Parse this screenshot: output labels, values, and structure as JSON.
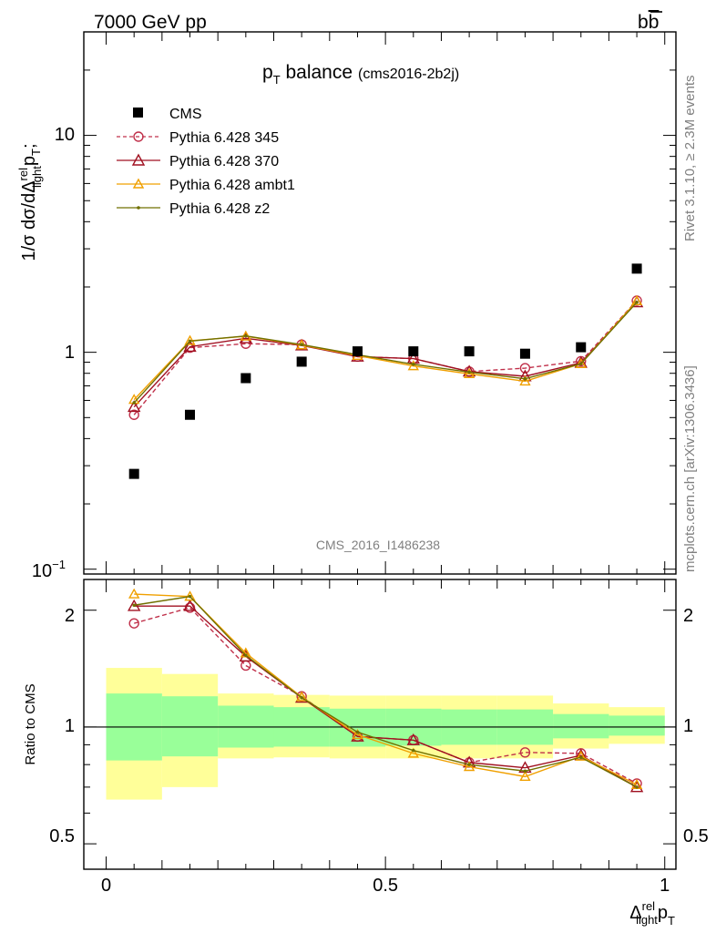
{
  "header": {
    "energy_label": "7000 GeV pp",
    "process_main": "b",
    "process_bar": "b"
  },
  "side_labels": {
    "rivet": "Rivet 3.1.10, ≥ 2.3M events",
    "mcplots": "mcplots.cern.ch [arXiv:1306.3436]"
  },
  "chart_data": [
    {
      "type": "scatter",
      "title_main": "p",
      "title_sub": "T",
      "title_rest": " balance",
      "title_tag": "(cms2016-2b2j)",
      "analysis_id": "CMS_2016_I1486238",
      "ylabel_parts": {
        "a": "1/σ dσ/dΔ",
        "sup": "rel",
        "sub": "light",
        "b": "p",
        "sub2": "T",
        "c": ";"
      },
      "yscale": "log",
      "ylim": [
        0.095,
        30
      ],
      "xlim": [
        -0.04,
        1.02
      ],
      "y_ticks": [
        {
          "v": 10,
          "label": "10"
        },
        {
          "v": 1,
          "label": "1"
        }
      ],
      "y_tick_low": {
        "base": "10",
        "exp": "−1"
      },
      "x": [
        0.05,
        0.15,
        0.25,
        0.35,
        0.45,
        0.55,
        0.65,
        0.75,
        0.85,
        0.95
      ],
      "series": [
        {
          "name": "CMS",
          "color": "#000000",
          "marker": "square",
          "line": "none",
          "values": [
            0.275,
            0.515,
            0.76,
            0.905,
            1.01,
            1.01,
            1.01,
            0.985,
            1.055,
            2.43
          ]
        },
        {
          "name": "Pythia 6.428 345",
          "color": "#c0304a",
          "marker": "circle",
          "line": "dashed",
          "values": [
            0.515,
            1.05,
            1.095,
            1.085,
            0.955,
            0.935,
            0.815,
            0.845,
            0.91,
            1.73
          ]
        },
        {
          "name": "Pythia 6.428 370",
          "color": "#a01020",
          "marker": "triangle",
          "line": "solid",
          "values": [
            0.56,
            1.06,
            1.16,
            1.075,
            0.955,
            0.935,
            0.815,
            0.775,
            0.895,
            1.7
          ]
        },
        {
          "name": "Pythia 6.428 ambt1",
          "color": "#f0a000",
          "marker": "triangle",
          "line": "solid",
          "values": [
            0.605,
            1.13,
            1.185,
            1.08,
            0.965,
            0.865,
            0.795,
            0.735,
            0.885,
            1.725
          ]
        },
        {
          "name": "Pythia 6.428 z2",
          "color": "#707000",
          "marker": "dot",
          "line": "solid",
          "values": [
            0.585,
            1.125,
            1.19,
            1.085,
            0.975,
            0.88,
            0.81,
            0.755,
            0.885,
            1.7
          ]
        }
      ]
    },
    {
      "type": "line",
      "ylabel": "Ratio to CMS",
      "yscale": "log",
      "ylim": [
        0.43,
        2.4
      ],
      "xlim": [
        -0.04,
        1.02
      ],
      "xlabel_parts": {
        "a": "Δ",
        "sup": "rel",
        "sub": "light",
        "b": "p",
        "sub2": "T"
      },
      "x_ticks": [
        {
          "v": 0,
          "label": "0"
        },
        {
          "v": 0.5,
          "label": "0.5"
        },
        {
          "v": 1,
          "label": "1"
        }
      ],
      "y_ticks": [
        {
          "v": 2,
          "label": "2"
        },
        {
          "v": 1,
          "label": "1"
        },
        {
          "v": 0.5,
          "label": "0.5"
        }
      ],
      "bins": [
        0,
        0.1,
        0.2,
        0.3,
        0.4,
        0.5,
        0.6,
        0.7,
        0.8,
        0.9,
        1.0
      ],
      "band_inner": {
        "color": "#99ff99",
        "low": [
          0.82,
          0.84,
          0.885,
          0.89,
          0.89,
          0.895,
          0.9,
          0.9,
          0.935,
          0.95
        ],
        "high": [
          1.22,
          1.2,
          1.135,
          1.125,
          1.115,
          1.115,
          1.11,
          1.11,
          1.08,
          1.07
        ]
      },
      "band_outer": {
        "color": "#ffff99",
        "low": [
          0.65,
          0.7,
          0.83,
          0.835,
          0.83,
          0.83,
          0.83,
          0.83,
          0.88,
          0.905
        ],
        "high": [
          1.42,
          1.37,
          1.22,
          1.21,
          1.205,
          1.205,
          1.205,
          1.205,
          1.15,
          1.125
        ]
      },
      "x": [
        0.05,
        0.15,
        0.25,
        0.35,
        0.45,
        0.55,
        0.65,
        0.75,
        0.85,
        0.95
      ],
      "series": [
        {
          "name": "Pythia 6.428 345",
          "color": "#c0304a",
          "marker": "circle",
          "line": "dashed",
          "values": [
            1.85,
            2.03,
            1.44,
            1.2,
            0.945,
            0.925,
            0.81,
            0.86,
            0.855,
            0.715
          ]
        },
        {
          "name": "Pythia 6.428 370",
          "color": "#a01020",
          "marker": "triangle",
          "line": "solid",
          "values": [
            2.05,
            2.05,
            1.52,
            1.19,
            0.945,
            0.925,
            0.81,
            0.785,
            0.845,
            0.7
          ]
        },
        {
          "name": "Pythia 6.428 ambt1",
          "color": "#f0a000",
          "marker": "triangle",
          "line": "solid",
          "values": [
            2.2,
            2.17,
            1.55,
            1.195,
            0.955,
            0.855,
            0.79,
            0.745,
            0.84,
            0.71
          ]
        },
        {
          "name": "Pythia 6.428 z2",
          "color": "#707000",
          "marker": "dot",
          "line": "solid",
          "values": [
            2.06,
            2.17,
            1.53,
            1.19,
            0.97,
            0.87,
            0.8,
            0.77,
            0.835,
            0.7
          ]
        }
      ]
    }
  ]
}
